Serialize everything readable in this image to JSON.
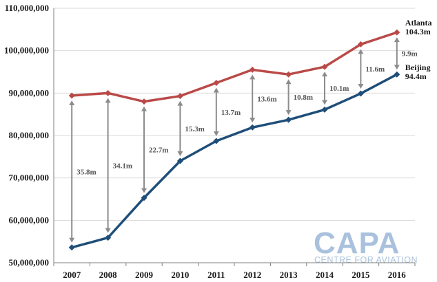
{
  "chart_data": {
    "type": "line",
    "title": "",
    "xlabel": "",
    "ylabel": "",
    "categories": [
      "2007",
      "2008",
      "2009",
      "2010",
      "2011",
      "2012",
      "2013",
      "2014",
      "2015",
      "2016"
    ],
    "ylim": [
      50000000,
      110000000
    ],
    "yticks": [
      50000000,
      60000000,
      70000000,
      80000000,
      90000000,
      100000000,
      110000000
    ],
    "ytick_labels": [
      "50,000,000",
      "60,000,000",
      "70,000,000",
      "80,000,000",
      "90,000,000",
      "100,000,000",
      "110,000,000"
    ],
    "grid": true,
    "series": [
      {
        "name": "Atlanta",
        "end_label": "104.3m",
        "color": "#b94a48",
        "values": [
          89400000,
          90000000,
          88000000,
          89300000,
          92400000,
          95500000,
          94400000,
          96200000,
          101500000,
          104300000
        ]
      },
      {
        "name": "Beijing",
        "end_label": "94.4m",
        "color": "#1f4e79",
        "values": [
          53600000,
          55900000,
          65300000,
          74000000,
          78700000,
          81900000,
          83700000,
          86100000,
          89900000,
          94400000
        ]
      }
    ],
    "difference_labels": [
      "35.8m",
      "34.1m",
      "22.7m",
      "15.3m",
      "13.7m",
      "13.6m",
      "10.8m",
      "10.1m",
      "11.6m",
      "9.9m"
    ],
    "arrow_color": "#8c8c8c"
  },
  "logo": {
    "main": "CAPA",
    "sub": "CENTRE FOR AVIATION",
    "color": "#a9c1dc"
  }
}
